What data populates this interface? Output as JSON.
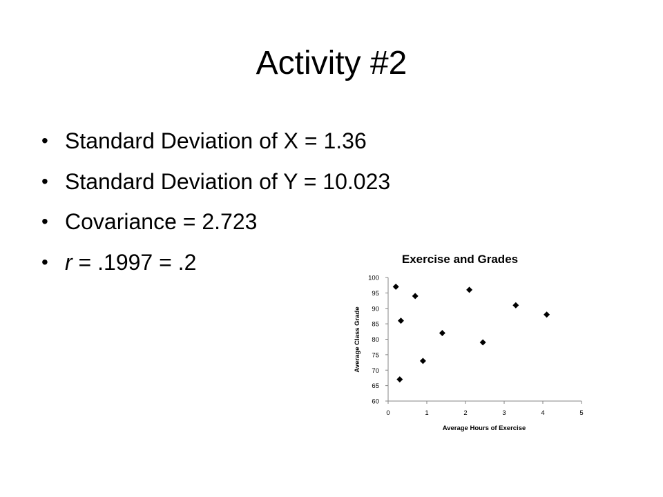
{
  "slide": {
    "title": "Activity #2",
    "bullets": [
      {
        "text": "Standard Deviation of X = 1.36"
      },
      {
        "text": "Standard Deviation of Y = 10.023"
      },
      {
        "text": "Covariance = 2.723"
      },
      {
        "var": "r",
        "text": " = .1997 = .2"
      }
    ]
  },
  "chart_data": {
    "type": "scatter",
    "title": "Exercise and Grades",
    "xlabel": "Average Hours of Exercise",
    "ylabel": "Average Class Grade",
    "xlim": [
      0,
      5
    ],
    "ylim": [
      60,
      100
    ],
    "xticks": [
      0,
      1,
      2,
      3,
      4,
      5
    ],
    "yticks": [
      60,
      65,
      70,
      75,
      80,
      85,
      90,
      95,
      100
    ],
    "grid": false,
    "marker": "diamond",
    "color": "#000000",
    "points": [
      {
        "x": 0.2,
        "y": 97
      },
      {
        "x": 0.3,
        "y": 67
      },
      {
        "x": 0.33,
        "y": 86
      },
      {
        "x": 0.7,
        "y": 94
      },
      {
        "x": 0.9,
        "y": 73
      },
      {
        "x": 1.4,
        "y": 82
      },
      {
        "x": 2.1,
        "y": 96
      },
      {
        "x": 2.45,
        "y": 79
      },
      {
        "x": 3.3,
        "y": 91
      },
      {
        "x": 4.1,
        "y": 88
      }
    ]
  }
}
